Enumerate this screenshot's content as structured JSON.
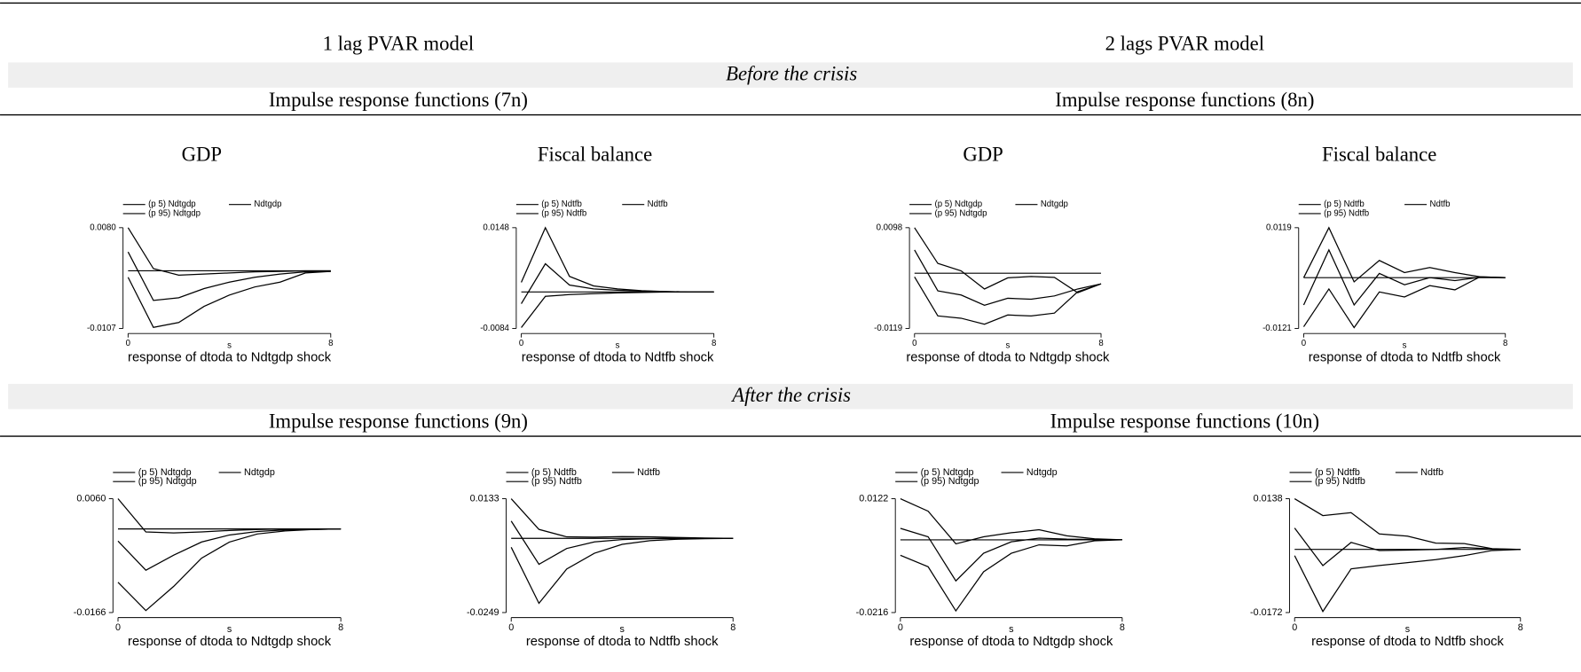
{
  "columns": [
    "1 lag PVAR model",
    "2 lags PVAR model"
  ],
  "sections": [
    {
      "title": "Before the crisis",
      "panels": [
        "Impulse response functions (7n)",
        "Impulse response functions (8n)"
      ]
    },
    {
      "title": "After the crisis",
      "panels": [
        "Impulse response functions (9n)",
        "Impulse response functions (10n)"
      ]
    }
  ],
  "chart_data": [
    {
      "type": "line",
      "title": "GDP",
      "x": [
        0,
        1,
        2,
        3,
        4,
        5,
        6,
        7,
        8
      ],
      "xlim": [
        0,
        8
      ],
      "xticks": [
        0,
        8
      ],
      "xlabel": "s",
      "caption": "response of dtoda to Ndtgdp shock",
      "ylim": [
        -0.0107,
        0.008
      ],
      "yticks": [
        -0.0107,
        {
          "value": 0.008,
          "label": "0.0080"
        }
      ],
      "series": [
        {
          "name": "(p 5) Ndtgdp",
          "color": "#000000",
          "values": [
            -0.0012,
            -0.0105,
            -0.0096,
            -0.0066,
            -0.0045,
            -0.003,
            -0.0021,
            -0.0004,
            -0.0001
          ]
        },
        {
          "name": "Ndtgdp",
          "color": "#000000",
          "values": [
            0.0035,
            -0.0055,
            -0.005,
            -0.0033,
            -0.0021,
            -0.0012,
            -0.0006,
            -0.0002,
            -0.0001
          ]
        },
        {
          "name": "(p 95) Ndtgdp",
          "color": "#000000",
          "values": [
            0.008,
            0.0004,
            -0.0008,
            -0.0006,
            -0.0004,
            -0.0002,
            -0.0001,
            0,
            0
          ]
        }
      ]
    },
    {
      "type": "line",
      "title": "Fiscal balance",
      "x": [
        0,
        1,
        2,
        3,
        4,
        5,
        6,
        7,
        8
      ],
      "xlim": [
        0,
        8
      ],
      "xticks": [
        0,
        8
      ],
      "xlabel": "s",
      "caption": "response of dtoda to Ndtfb shock",
      "ylim": [
        -0.0084,
        0.0148
      ],
      "yticks": [
        -0.0084,
        0.0148
      ],
      "series": [
        {
          "name": "(p 5) Ndtfb",
          "color": "#000000",
          "values": [
            -0.0082,
            -0.001,
            -0.0006,
            -0.0004,
            -0.0002,
            -0.0001,
            0,
            0,
            0
          ]
        },
        {
          "name": "Ndtfb",
          "color": "#000000",
          "values": [
            -0.0027,
            0.0065,
            0.0016,
            0.0007,
            0.0004,
            0.0002,
            0.0001,
            0,
            0
          ]
        },
        {
          "name": "(p 95) Ndtfb",
          "color": "#000000",
          "values": [
            0.0022,
            0.0148,
            0.0036,
            0.0014,
            0.0007,
            0.0003,
            0.0001,
            0,
            0
          ]
        }
      ]
    },
    {
      "type": "line",
      "title": "GDP",
      "x": [
        0,
        1,
        2,
        3,
        4,
        5,
        6,
        7,
        8
      ],
      "xlim": [
        0,
        8
      ],
      "xticks": [
        0,
        8
      ],
      "xlabel": "s",
      "caption": "response of dtoda to Ndtgdp shock",
      "ylim": [
        -0.0119,
        0.0098
      ],
      "yticks": [
        -0.0119,
        0.0098
      ],
      "series": [
        {
          "name": "(p 5) Ndtgdp",
          "color": "#000000",
          "values": [
            -0.0008,
            -0.0092,
            -0.0097,
            -0.011,
            -0.009,
            -0.0092,
            -0.0086,
            -0.004,
            -0.0023
          ]
        },
        {
          "name": "Ndtgdp",
          "color": "#000000",
          "values": [
            0.005,
            -0.0038,
            -0.0047,
            -0.0069,
            -0.0054,
            -0.0056,
            -0.0049,
            -0.0034,
            -0.0023
          ]
        },
        {
          "name": "(p 95) Ndtgdp",
          "color": "#000000",
          "values": [
            0.0098,
            0.0021,
            0.0005,
            -0.0034,
            -0.001,
            -0.0007,
            -0.0009,
            -0.0042,
            -0.0023
          ]
        }
      ]
    },
    {
      "type": "line",
      "title": "Fiscal balance",
      "x": [
        0,
        1,
        2,
        3,
        4,
        5,
        6,
        7,
        8
      ],
      "xlim": [
        0,
        8
      ],
      "xticks": [
        0,
        8
      ],
      "xlabel": "s",
      "caption": "response of dtoda to Ndtfb shock",
      "ylim": [
        -0.0121,
        0.0119
      ],
      "yticks": [
        -0.0121,
        0.0119
      ],
      "series": [
        {
          "name": "(p 5) Ndtfb",
          "color": "#000000",
          "values": [
            -0.0117,
            -0.0027,
            -0.0119,
            -0.0034,
            -0.0046,
            -0.0019,
            -0.0029,
            0.0002,
            0
          ]
        },
        {
          "name": "Ndtfb",
          "color": "#000000",
          "values": [
            -0.0065,
            0.0066,
            -0.0065,
            0.001,
            -0.0017,
            0,
            -0.0007,
            0.0001,
            0
          ]
        },
        {
          "name": "(p 95) Ndtfb",
          "color": "#000000",
          "values": [
            0,
            0.0119,
            -0.001,
            0.0041,
            0.0012,
            0.0024,
            0.0012,
            0.0002,
            0
          ]
        }
      ]
    },
    {
      "type": "line",
      "x": [
        0,
        1,
        2,
        3,
        4,
        5,
        6,
        7,
        8
      ],
      "xlim": [
        0,
        8
      ],
      "xticks": [
        0,
        8
      ],
      "xlabel": "s",
      "caption": "response of dtoda to Ndtgdp shock",
      "ylim": [
        -0.0166,
        0.006
      ],
      "yticks": [
        -0.0166,
        {
          "value": 0.006,
          "label": "0.0060"
        }
      ],
      "series": [
        {
          "name": "(p 5) Ndtgdp",
          "color": "#000000",
          "values": [
            -0.0106,
            -0.0162,
            -0.0114,
            -0.0058,
            -0.0026,
            -0.001,
            -0.0004,
            -0.0001,
            0
          ]
        },
        {
          "name": "Ndtgdp",
          "color": "#000000",
          "values": [
            -0.0024,
            -0.0082,
            -0.0052,
            -0.0026,
            -0.0012,
            -0.0005,
            -0.0002,
            -0.0001,
            0
          ]
        },
        {
          "name": "(p 95) Ndtgdp",
          "color": "#000000",
          "values": [
            0.006,
            -0.0006,
            -0.0008,
            -0.0006,
            -0.0003,
            -0.0001,
            0,
            0,
            0
          ]
        }
      ]
    },
    {
      "type": "line",
      "x": [
        0,
        1,
        2,
        3,
        4,
        5,
        6,
        7,
        8
      ],
      "xlim": [
        0,
        8
      ],
      "xticks": [
        0,
        8
      ],
      "xlabel": "s",
      "caption": "response of dtoda to Ndtfb shock",
      "ylim": [
        -0.0249,
        0.0133
      ],
      "yticks": [
        -0.0249,
        0.0133
      ],
      "series": [
        {
          "name": "(p 5) Ndtfb",
          "color": "#000000",
          "values": [
            -0.003,
            -0.0218,
            -0.0103,
            -0.005,
            -0.002,
            -0.0008,
            -0.0003,
            -0.0001,
            0
          ]
        },
        {
          "name": "Ndtfb",
          "color": "#000000",
          "values": [
            0.0058,
            -0.0087,
            -0.0034,
            -0.0012,
            -0.0004,
            -0.0001,
            0,
            0,
            0
          ]
        },
        {
          "name": "(p 95) Ndtfb",
          "color": "#000000",
          "values": [
            0.0133,
            0.003,
            0.0005,
            0.0004,
            0.0006,
            0.0005,
            0.0003,
            0.0001,
            0
          ]
        }
      ]
    },
    {
      "type": "line",
      "x": [
        0,
        1,
        2,
        3,
        4,
        5,
        6,
        7,
        8
      ],
      "xlim": [
        0,
        8
      ],
      "xticks": [
        0,
        8
      ],
      "xlabel": "s",
      "caption": "response of dtoda to Ndtgdp shock",
      "ylim": [
        -0.0216,
        0.0122
      ],
      "yticks": [
        -0.0216,
        0.0122
      ],
      "series": [
        {
          "name": "(p 5) Ndtgdp",
          "color": "#000000",
          "values": [
            -0.0046,
            -0.008,
            -0.0211,
            -0.0095,
            -0.004,
            -0.0015,
            -0.0018,
            -0.0003,
            0
          ]
        },
        {
          "name": "Ndtgdp",
          "color": "#000000",
          "values": [
            0.0034,
            0.0009,
            -0.0122,
            -0.004,
            -0.0006,
            0.0005,
            0.0002,
            0.0001,
            0
          ]
        },
        {
          "name": "(p 95) Ndtgdp",
          "color": "#000000",
          "values": [
            0.0122,
            0.0085,
            -0.0012,
            0.0009,
            0.0021,
            0.003,
            0.0012,
            0.0003,
            0
          ]
        }
      ]
    },
    {
      "type": "line",
      "x": [
        0,
        1,
        2,
        3,
        4,
        5,
        6,
        7,
        8
      ],
      "xlim": [
        0,
        8
      ],
      "xticks": [
        0,
        8
      ],
      "xlabel": "s",
      "caption": "response of dtoda to Ndtfb shock",
      "ylim": [
        -0.0172,
        0.0138
      ],
      "yticks": [
        -0.0172,
        0.0138
      ],
      "series": [
        {
          "name": "(p 5) Ndtfb",
          "color": "#000000",
          "values": [
            -0.0017,
            -0.0169,
            -0.0053,
            -0.0044,
            -0.0036,
            -0.0028,
            -0.0017,
            -0.0003,
            0
          ]
        },
        {
          "name": "Ndtfb",
          "color": "#000000",
          "values": [
            0.0058,
            -0.0044,
            0.0019,
            -0.0003,
            -0.0002,
            0,
            0.0005,
            0.0001,
            0
          ]
        },
        {
          "name": "(p 95) Ndtfb",
          "color": "#000000",
          "values": [
            0.0138,
            0.0092,
            0.01,
            0.0042,
            0.0036,
            0.0017,
            0.0016,
            0.0002,
            0
          ]
        }
      ]
    }
  ]
}
